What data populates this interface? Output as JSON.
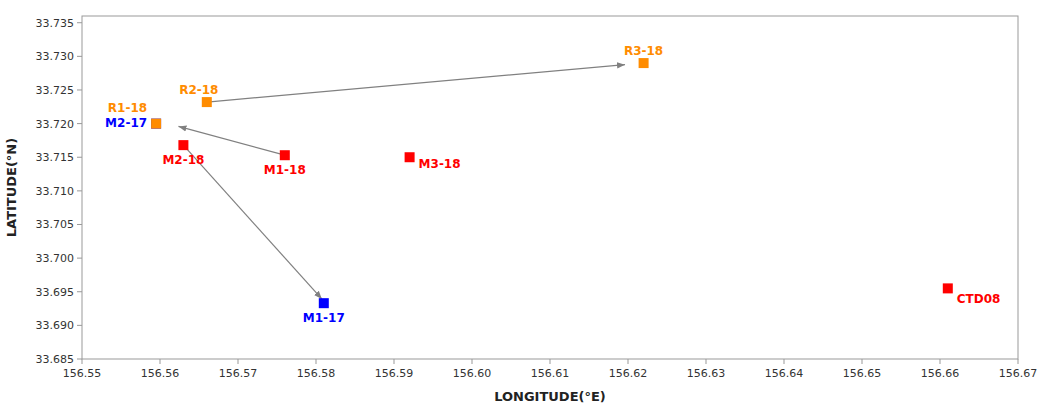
{
  "chart_data": {
    "type": "scatter",
    "marker": "square",
    "xlabel": "LONGITUDE(°E)",
    "ylabel": "LATITUDE(°N)",
    "points": [
      {
        "label": "M2-17",
        "x": 156.5595,
        "y": 33.72,
        "color": "#0000FF"
      },
      {
        "label": "M1-17",
        "x": 156.581,
        "y": 33.6933,
        "color": "#0000FF"
      },
      {
        "label": "M1-18",
        "x": 156.576,
        "y": 33.7153,
        "color": "#FF0000"
      },
      {
        "label": "M2-18",
        "x": 156.563,
        "y": 33.7168,
        "color": "#FF0000"
      },
      {
        "label": "M3-18",
        "x": 156.592,
        "y": 33.715,
        "color": "#FF0000"
      },
      {
        "label": "R1-18",
        "x": 156.5595,
        "y": 33.72,
        "color": "#FF8C00"
      },
      {
        "label": "R2-18",
        "x": 156.566,
        "y": 33.7232,
        "color": "#FF8C00"
      },
      {
        "label": "R3-18",
        "x": 156.622,
        "y": 33.729,
        "color": "#FF8C00"
      },
      {
        "label": "CTD08",
        "x": 156.661,
        "y": 33.6955,
        "color": "#FF0000"
      }
    ],
    "arrows": [
      {
        "x_start": 156.566,
        "y_start": 33.7232,
        "x_end": 156.62,
        "y_end": 33.7288,
        "color": "gray"
      },
      {
        "x_start": 156.576,
        "y_start": 33.7153,
        "x_end": 156.562,
        "y_end": 33.7197,
        "color": "gray"
      },
      {
        "x_start": 156.563,
        "y_start": 33.7168,
        "x_end": 156.581,
        "y_end": 33.6936,
        "color": "gray"
      }
    ],
    "xlim": [
      156.55,
      156.67
    ],
    "ylim": [
      33.685,
      33.736
    ],
    "xticks": [
      156.55,
      156.56,
      156.57,
      156.58,
      156.59,
      {
        "value": 156.6,
        "label": "156.60"
      },
      156.61,
      156.62,
      156.63,
      156.64,
      156.65,
      156.66,
      156.67
    ],
    "yticks": [
      33.685,
      {
        "value": 33.69,
        "label": "33.690"
      },
      33.695,
      {
        "value": 33.7,
        "label": "33.700"
      },
      33.705,
      {
        "value": 33.71,
        "label": "33.710"
      },
      33.715,
      {
        "value": 33.72,
        "label": "33.720"
      },
      33.725,
      {
        "value": 33.73,
        "label": "33.730"
      },
      33.735
    ]
  }
}
